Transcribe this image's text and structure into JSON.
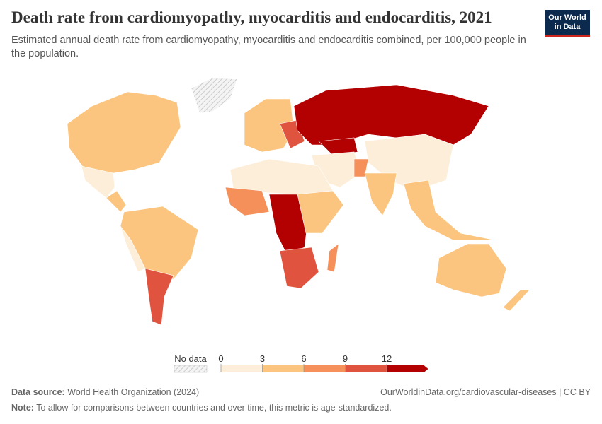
{
  "header": {
    "title": "Death rate from cardiomyopathy, myocarditis and endocarditis, 2021",
    "subtitle": "Estimated annual death rate from cardiomyopathy, myocarditis and endocarditis combined, per 100,000 people in the population.",
    "logo": [
      "Our World",
      "in Data"
    ]
  },
  "legend": {
    "no_data_label": "No data",
    "ticks": [
      0,
      3,
      6,
      9,
      12
    ],
    "colors": [
      "#fdeed9",
      "#fbc57f",
      "#f5905a",
      "#e0533f",
      "#b30000"
    ]
  },
  "footer": {
    "source_label": "Data source:",
    "source": "World Health Organization (2024)",
    "url": "OurWorldinData.org/cardiovascular-diseases | CC BY",
    "note_label": "Note:",
    "note": "To allow for comparisons between countries and over time, this metric is age-standardized."
  }
}
